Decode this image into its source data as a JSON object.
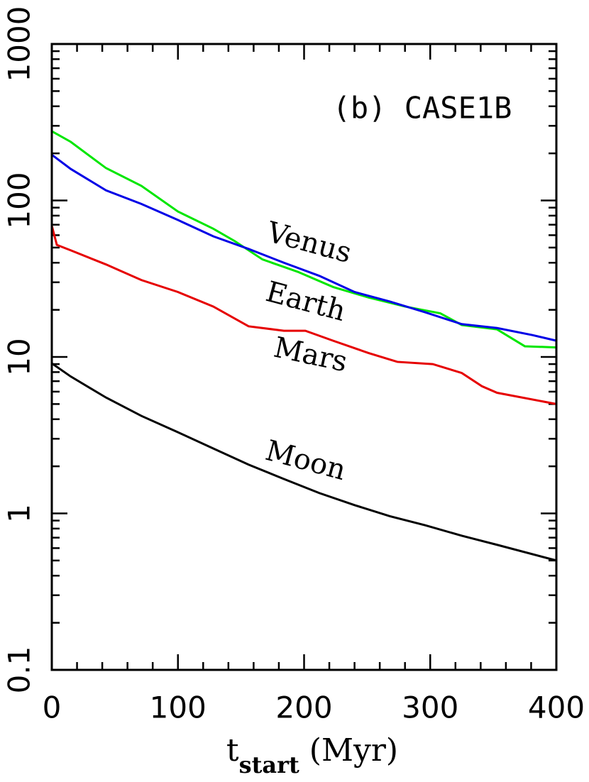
{
  "chart_data": {
    "type": "line",
    "log_y": true,
    "xlim": [
      0,
      400
    ],
    "ylim": [
      0.1,
      1000
    ],
    "xticks": [
      0,
      100,
      200,
      300,
      400
    ],
    "yticks": [
      0.1,
      1,
      10,
      100,
      1000
    ],
    "xticks_minor": [
      20,
      40,
      60,
      80,
      120,
      140,
      160,
      180,
      220,
      240,
      260,
      280,
      320,
      340,
      360,
      380
    ],
    "yticks_minor": [
      0.2,
      0.3,
      0.4,
      0.5,
      0.6,
      0.7,
      0.8,
      0.9,
      2,
      3,
      4,
      5,
      6,
      7,
      8,
      9,
      20,
      30,
      40,
      50,
      60,
      70,
      80,
      90,
      200,
      300,
      400,
      500,
      600,
      700,
      800,
      900
    ],
    "xlabel": {
      "main": "t",
      "sub": "start",
      "rest": "(Myr)"
    },
    "annotation": "(b) CASE1B",
    "series": [
      {
        "name": "Venus",
        "color": "#00e600",
        "x": [
          0,
          15,
          43,
          71,
          100,
          128,
          145,
          167,
          195,
          223,
          251,
          280,
          308,
          325,
          353,
          375,
          400
        ],
        "values": [
          277,
          237,
          161,
          124,
          85,
          66,
          55,
          42,
          35,
          28,
          24,
          21,
          19,
          16,
          15,
          11.7,
          11.5
        ]
      },
      {
        "name": "Earth",
        "color": "#0000e6",
        "x": [
          0,
          15,
          43,
          71,
          100,
          128,
          156,
          184,
          212,
          240,
          268,
          296,
          325,
          353,
          381,
          400
        ],
        "values": [
          196,
          159,
          116,
          95,
          75,
          59,
          49,
          40,
          33,
          26,
          22.6,
          19.3,
          16.2,
          15.3,
          13.8,
          12.7
        ]
      },
      {
        "name": "Mars",
        "color": "#e60000",
        "x": [
          0,
          4,
          15,
          43,
          71,
          100,
          128,
          156,
          184,
          201,
          223,
          251,
          274,
          302,
          325,
          341,
          353,
          400
        ],
        "values": [
          69,
          52,
          48,
          39,
          31,
          26,
          21,
          15.7,
          14.7,
          14.7,
          12.7,
          10.6,
          9.3,
          9.0,
          7.9,
          6.5,
          5.9,
          5.0
        ]
      },
      {
        "name": "Moon",
        "color": "#000000",
        "x": [
          0,
          15,
          43,
          71,
          100,
          128,
          156,
          184,
          212,
          240,
          268,
          296,
          325,
          353,
          400
        ],
        "values": [
          9.1,
          7.5,
          5.5,
          4.2,
          3.3,
          2.6,
          2.05,
          1.66,
          1.35,
          1.13,
          0.96,
          0.84,
          0.72,
          0.63,
          0.5
        ]
      }
    ]
  }
}
